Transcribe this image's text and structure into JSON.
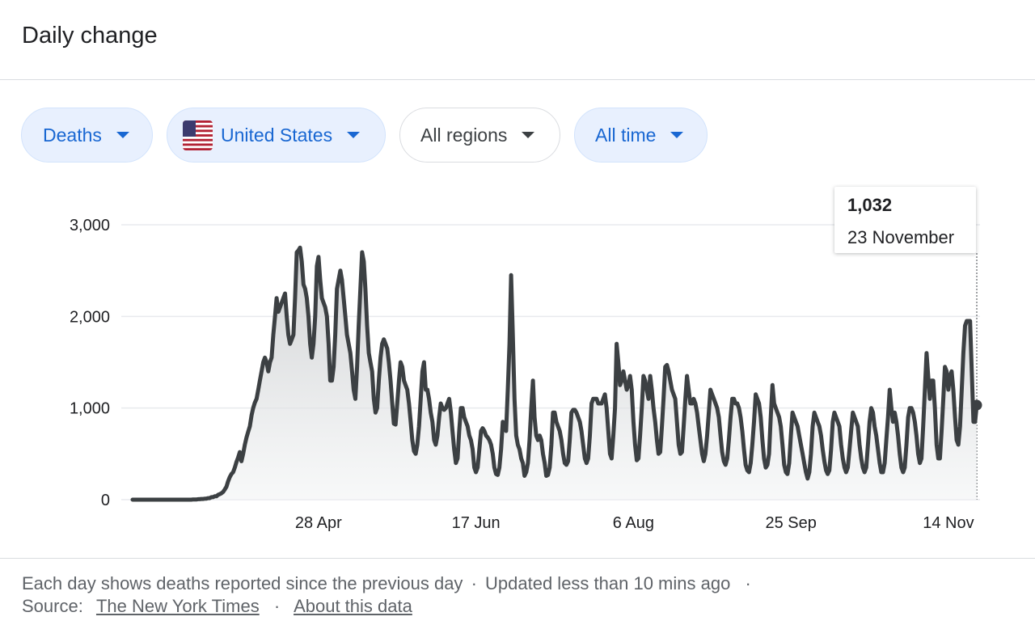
{
  "header": {
    "title": "Daily change"
  },
  "filters": {
    "metric": "Deaths",
    "country": "United States",
    "region": "All regions",
    "time": "All time"
  },
  "tooltip": {
    "value": "1,032",
    "date": "23 November"
  },
  "footer": {
    "note": "Each day shows deaths reported since the previous day",
    "updated": "Updated less than 10 mins ago",
    "source_label": "Source:",
    "source_link": "The New York Times",
    "about_link": "About this data",
    "sep": "·"
  },
  "colors": {
    "line": "#3c4043",
    "accent": "#1967d2",
    "chip_bg": "#e8f0fe",
    "grid": "#e8eaed"
  },
  "chart_data": {
    "type": "area",
    "title": "",
    "xlabel": "",
    "ylabel": "",
    "ylim": [
      0,
      3000
    ],
    "yticks": [
      0,
      1000,
      2000,
      3000
    ],
    "ytick_labels": [
      "0",
      "1,000",
      "2,000",
      "3,000"
    ],
    "xticks": [
      "28 Apr",
      "17 Jun",
      "6 Aug",
      "25 Sep",
      "14 Nov"
    ],
    "x_start": "2020-02-29",
    "x_end": "2020-11-23",
    "grid": true,
    "series": [
      {
        "values": [
          0,
          0,
          0,
          0,
          0,
          0,
          0,
          0,
          0,
          0,
          0,
          0,
          0,
          0,
          0,
          0,
          0,
          0,
          0,
          0,
          0,
          0,
          0,
          0,
          0,
          0,
          0,
          0,
          0,
          0,
          0,
          0,
          0,
          0,
          0,
          0,
          2,
          2,
          2,
          5,
          5,
          8,
          8,
          11,
          11,
          17,
          17,
          27,
          27,
          37,
          37,
          52,
          60,
          70,
          85,
          110,
          140,
          200,
          245,
          280,
          300,
          350,
          410,
          460,
          520,
          420,
          500,
          600,
          680,
          740,
          800,
          920,
          1000,
          1060,
          1100,
          1200,
          1300,
          1400,
          1500,
          1550,
          1500,
          1400,
          1500,
          1550,
          1800,
          2000,
          2200,
          2050,
          2100,
          2150,
          2200,
          2250,
          2000,
          1800,
          1700,
          1750,
          1800,
          2200,
          2700,
          2720,
          2750,
          2600,
          2350,
          2300,
          2200,
          2000,
          1700,
          1550,
          1700,
          2000,
          2550,
          2650,
          2400,
          2200,
          2150,
          2100,
          2000,
          1700,
          1300,
          1300,
          1450,
          1800,
          2300,
          2400,
          2500,
          2400,
          2200,
          2000,
          1800,
          1700,
          1600,
          1400,
          1200,
          1100,
          1450,
          1900,
          2300,
          2700,
          2600,
          2300,
          1900,
          1600,
          1500,
          1400,
          1100,
          950,
          1000,
          1300,
          1550,
          1700,
          1750,
          1700,
          1650,
          1500,
          1300,
          1050,
          830,
          820,
          1050,
          1300,
          1500,
          1450,
          1300,
          1250,
          1200,
          1050,
          850,
          650,
          530,
          500,
          600,
          800,
          1100,
          1400,
          1500,
          1200,
          1200,
          1100,
          950,
          850,
          650,
          600,
          700,
          900,
          1050,
          1000,
          980,
          1000,
          1050,
          1100,
          950,
          750,
          550,
          400,
          450,
          750,
          1000,
          1000,
          900,
          850,
          800,
          700,
          650,
          550,
          350,
          300,
          350,
          550,
          750,
          780,
          750,
          700,
          680,
          650,
          600,
          500,
          350,
          280,
          270,
          350,
          550,
          850,
          800,
          750,
          1200,
          1700,
          2450,
          1800,
          1100,
          700,
          600,
          550,
          450,
          400,
          260,
          300,
          400,
          650,
          1000,
          1300,
          900,
          700,
          650,
          700,
          650,
          500,
          400,
          260,
          270,
          350,
          600,
          950,
          950,
          850,
          800,
          750,
          650,
          500,
          400,
          380,
          420,
          650,
          950,
          980,
          980,
          950,
          900,
          850,
          750,
          600,
          450,
          400,
          450,
          700,
          1050,
          1100,
          1100,
          1100,
          1050,
          1050,
          1050,
          1100,
          1150,
          1000,
          750,
          500,
          450,
          700,
          1000,
          1700,
          1500,
          1250,
          1300,
          1400,
          1300,
          1200,
          1250,
          1350,
          1200,
          850,
          600,
          430,
          450,
          700,
          1000,
          1350,
          1300,
          1200,
          1100,
          1350,
          1200,
          1000,
          850,
          650,
          500,
          520,
          800,
          1100,
          1450,
          1470,
          1400,
          1300,
          1200,
          1150,
          1100,
          850,
          600,
          500,
          520,
          800,
          1100,
          1350,
          1200,
          1050,
          1050,
          1100,
          1050,
          950,
          800,
          650,
          500,
          420,
          500,
          700,
          950,
          1200,
          1150,
          1100,
          1050,
          1000,
          900,
          700,
          520,
          420,
          380,
          450,
          650,
          900,
          1100,
          1100,
          1050,
          1050,
          1000,
          900,
          750,
          550,
          380,
          320,
          300,
          400,
          600,
          850,
          1150,
          1100,
          1050,
          900,
          650,
          450,
          350,
          380,
          500,
          900,
          1250,
          1050,
          1000,
          950,
          900,
          800,
          600,
          380,
          300,
          280,
          400,
          700,
          950,
          900,
          850,
          800,
          700,
          600,
          500,
          400,
          300,
          230,
          300,
          500,
          800,
          950,
          900,
          850,
          800,
          700,
          550,
          420,
          320,
          280,
          320,
          550,
          850,
          950,
          900,
          850,
          800,
          600,
          450,
          350,
          300,
          350,
          550,
          750,
          950,
          900,
          850,
          800,
          600,
          450,
          350,
          300,
          350,
          600,
          850,
          1000,
          950,
          800,
          700,
          550,
          400,
          300,
          300,
          400,
          650,
          900,
          1200,
          1000,
          850,
          950,
          850,
          700,
          500,
          350,
          300,
          350,
          600,
          900,
          1000,
          1000,
          950,
          850,
          700,
          500,
          400,
          450,
          800,
          1200,
          1600,
          1350,
          1100,
          1300,
          1300,
          1000,
          600,
          450,
          450,
          750,
          1100,
          1450,
          1400,
          1200,
          1350,
          1400,
          1200,
          900,
          650,
          600,
          800,
          1200,
          1600,
          1900,
          1950,
          1950,
          1950,
          1400,
          850,
          850,
          1032
        ]
      }
    ]
  }
}
